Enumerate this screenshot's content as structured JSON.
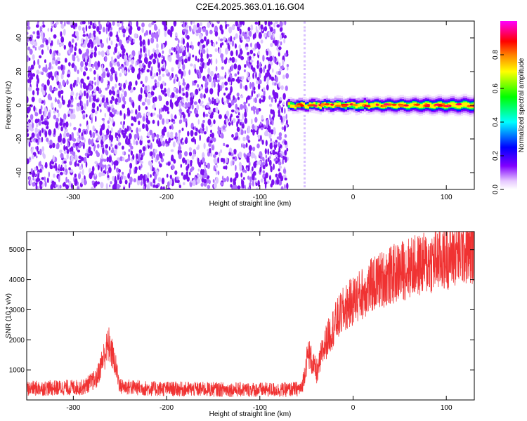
{
  "title": "C2E4.2025.363.01.16.G04",
  "chart_data": [
    {
      "type": "heatmap",
      "xlabel": "Height of straight line (km)",
      "ylabel": "Frequency (Hz)",
      "xlim": [
        -350,
        130
      ],
      "ylim": [
        -50,
        50
      ],
      "xticks": [
        -300,
        -200,
        -100,
        0,
        100
      ],
      "yticks": [
        -40,
        -20,
        0,
        20,
        40
      ],
      "colorbar": {
        "label": "Normalized spectral amplitude",
        "range": [
          0,
          1
        ],
        "ticks": [
          0.0,
          0.2,
          0.4,
          0.6,
          0.8
        ],
        "colormap": [
          "#ffffff",
          "#e6c8ff",
          "#8000ff",
          "#0000ff",
          "#00ffff",
          "#00ff00",
          "#ffff00",
          "#ff8000",
          "#ff0000",
          "#ff00ff"
        ]
      },
      "regions": [
        {
          "x_range": [
            -350,
            -70
          ],
          "y_range": [
            -50,
            50
          ],
          "pattern": "broadband noise",
          "amplitude": 0.12
        },
        {
          "x_range": [
            -70,
            130
          ],
          "center_frequency_hz": 0,
          "bandwidth_hz": 6,
          "amplitude": 0.9
        }
      ]
    },
    {
      "type": "line",
      "xlabel": "Height of straight line (km)",
      "ylabel": "SNR (10 * v/v)",
      "xlim": [
        -350,
        130
      ],
      "ylim": [
        0,
        5600
      ],
      "xticks": [
        -300,
        -200,
        -100,
        0,
        100
      ],
      "yticks": [
        1000,
        2000,
        3000,
        4000,
        5000
      ],
      "color": "#f03232",
      "x": [
        -350,
        -320,
        -290,
        -275,
        -268,
        -262,
        -256,
        -250,
        -220,
        -180,
        -140,
        -100,
        -70,
        -55,
        -48,
        -42,
        -38,
        -34,
        -28,
        -20,
        -10,
        0,
        10,
        20,
        30,
        45,
        60,
        80,
        100,
        115,
        130
      ],
      "y": [
        380,
        400,
        420,
        700,
        1400,
        1850,
        1300,
        450,
        380,
        360,
        350,
        340,
        340,
        380,
        1600,
        1100,
        900,
        1500,
        2000,
        2500,
        3000,
        3300,
        3550,
        3800,
        4000,
        4200,
        4400,
        4550,
        4750,
        4900,
        5000
      ]
    }
  ]
}
